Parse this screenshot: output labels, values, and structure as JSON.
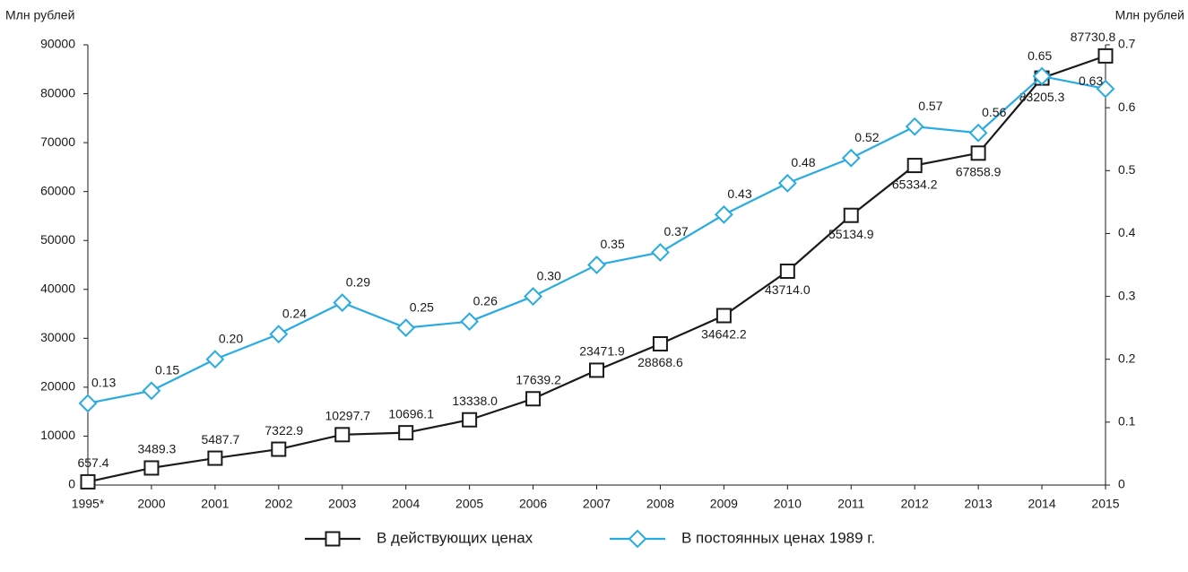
{
  "chart_data": {
    "type": "line",
    "y_label": "Млн рублей",
    "y2_label": "Млн рублей",
    "categories": [
      "1995*",
      "2000",
      "2001",
      "2002",
      "2003",
      "2004",
      "2005",
      "2006",
      "2007",
      "2008",
      "2009",
      "2010",
      "2011",
      "2012",
      "2013",
      "2014",
      "2015"
    ],
    "series": [
      {
        "name": "В действующих ценах",
        "color": "#1a1a1a",
        "marker": "square",
        "values": [
          657.4,
          3489.3,
          5487.7,
          7322.9,
          10297.7,
          10696.1,
          13338.0,
          17639.2,
          23471.9,
          28868.6,
          34642.2,
          43714.0,
          55134.9,
          65334.2,
          67858.9,
          83205.3,
          87730.8
        ],
        "value_labels": [
          "657.4",
          "3489.3",
          "5487.7",
          "7322.9",
          "10297.7",
          "10696.1",
          "13338.0",
          "17639.2",
          "23471.9",
          "28868.6",
          "34642.2",
          "43714.0",
          "55134.9",
          "65334.2",
          "67858.9",
          "83205.3",
          "87730.8"
        ]
      },
      {
        "name": "В постоянных ценах 1989 г.",
        "color": "#29abe2",
        "marker": "diamond",
        "axis": "y2",
        "values": [
          0.13,
          0.15,
          0.2,
          0.24,
          0.29,
          0.25,
          0.26,
          0.3,
          0.35,
          0.37,
          0.43,
          0.48,
          0.52,
          0.57,
          0.56,
          0.65,
          0.63
        ],
        "value_labels": [
          "0.13",
          "0.15",
          "0.20",
          "0.24",
          "0.29",
          "0.25",
          "0.26",
          "0.30",
          "0.35",
          "0.37",
          "0.43",
          "0.48",
          "0.52",
          "0.57",
          "0.56",
          "0.65",
          "0.63"
        ]
      }
    ],
    "ylim": [
      0,
      90000
    ],
    "yticks": [
      0,
      10000,
      20000,
      30000,
      40000,
      50000,
      60000,
      70000,
      80000,
      90000
    ],
    "y2lim": [
      0,
      0.7
    ],
    "y2ticks": [
      0,
      0.1,
      0.2,
      0.3,
      0.4,
      0.5,
      0.6,
      0.7
    ],
    "legend": "bottom",
    "grid": false
  }
}
